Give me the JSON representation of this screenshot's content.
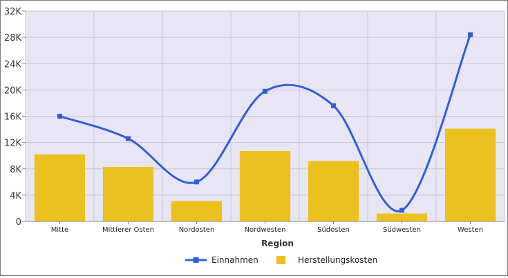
{
  "chart_data": {
    "type": "bar+line",
    "xlabel": "Region",
    "ylabel": "",
    "ylim": [
      0,
      32000
    ],
    "y_ticks": [
      {
        "value": 0,
        "label": "0"
      },
      {
        "value": 4000,
        "label": "4K"
      },
      {
        "value": 8000,
        "label": "8K"
      },
      {
        "value": 12000,
        "label": "12K"
      },
      {
        "value": 16000,
        "label": "16K"
      },
      {
        "value": 20000,
        "label": "20K"
      },
      {
        "value": 24000,
        "label": "24K"
      },
      {
        "value": 28000,
        "label": "28K"
      },
      {
        "value": 32000,
        "label": "32K"
      }
    ],
    "categories": [
      "Mitte",
      "Mittlerer Osten",
      "Nordosten",
      "Nordwesten",
      "Südosten",
      "Südwesten",
      "Westen"
    ],
    "series": [
      {
        "name": "Einnahmen",
        "type": "line",
        "smooth": true,
        "color": "#2f5fd6",
        "values": [
          16000,
          12600,
          6000,
          19800,
          17600,
          1700,
          28400
        ]
      },
      {
        "name": "Herstellungskosten",
        "type": "bar",
        "color": "#ebc11f",
        "values": [
          10200,
          8300,
          3100,
          10700,
          9200,
          1200,
          14100
        ]
      }
    ],
    "grid": true,
    "plot_background": "#e8e6f4",
    "legend_position": "bottom"
  }
}
